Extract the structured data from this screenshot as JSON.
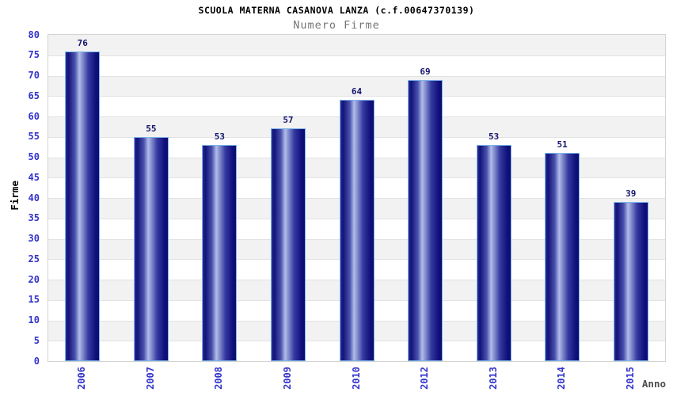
{
  "header": {
    "title": "SCUOLA MATERNA CASANOVA LANZA (c.f.00647370139)",
    "subtitle": "Numero Firme"
  },
  "chart_data": {
    "type": "bar",
    "title": "SCUOLA MATERNA CASANOVA LANZA (c.f.00647370139)",
    "subtitle": "Numero Firme",
    "categories": [
      "2006",
      "2007",
      "2008",
      "2009",
      "2010",
      "2012",
      "2013",
      "2014",
      "2015"
    ],
    "values": [
      76,
      55,
      53,
      57,
      64,
      69,
      53,
      51,
      39
    ],
    "xlabel": "Anno",
    "ylabel": "Firme",
    "ylim": [
      0,
      80
    ],
    "ytick_step": 5,
    "grid": true,
    "legend_position": "none",
    "colors": {
      "bar_dark": "#12127e",
      "bar_light": "#b2bce8",
      "bar_border": "#7db4ea",
      "tick_label": "#3333cc",
      "value_label": "#14146e",
      "band_gray": "#f2f2f2",
      "band_white": "#ffffff",
      "gridline": "#e2e2e2",
      "plot_border": "#d3d3d3",
      "title_color": "#000000",
      "subtitle_color": "#757575",
      "xlabel_color": "#4d4d4d",
      "ylabel_color": "#000000"
    }
  }
}
